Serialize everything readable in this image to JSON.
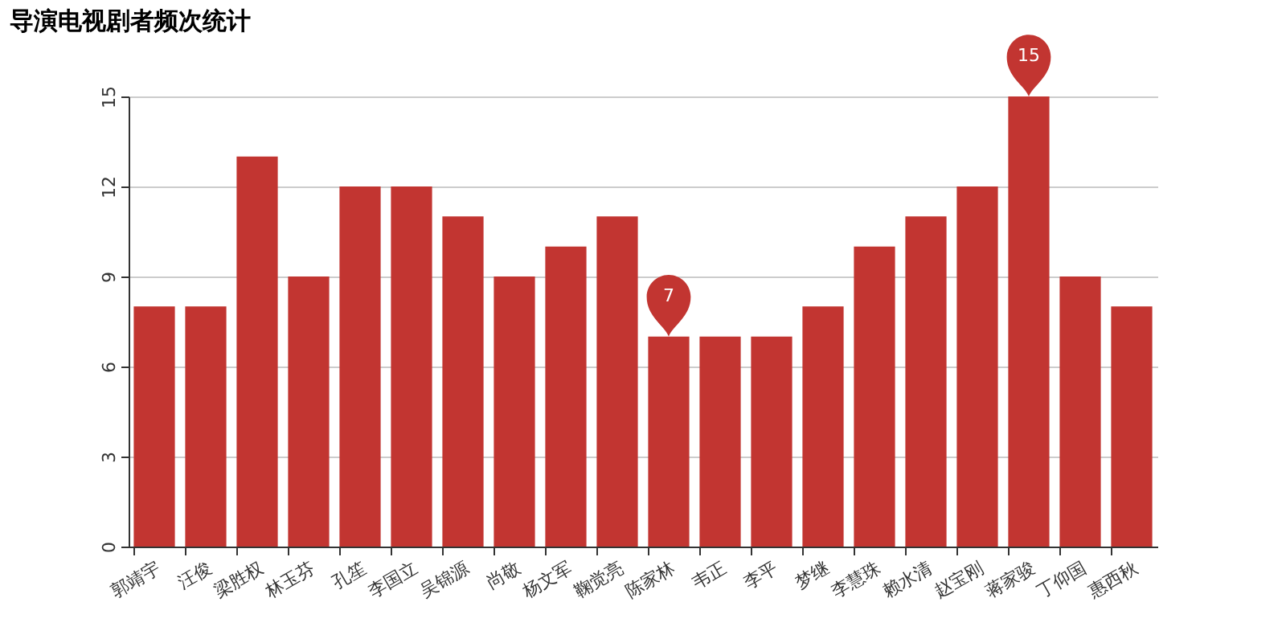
{
  "chart_data": {
    "type": "bar",
    "title": "导演电视剧者频次统计",
    "categories": [
      "郭靖宇",
      "汪俊",
      "梁胜权",
      "林玉芬",
      "孔笙",
      "李国立",
      "吴锦源",
      "尚敬",
      "杨文军",
      "鞠觉亮",
      "陈家林",
      "韦正",
      "李平",
      "梦继",
      "李慧珠",
      "赖水清",
      "赵宝刚",
      "蒋家骏",
      "丁仰国",
      "惠西秋"
    ],
    "values": [
      8,
      8,
      13,
      9,
      12,
      12,
      11,
      9,
      10,
      11,
      7,
      7,
      7,
      8,
      10,
      11,
      12,
      15,
      9,
      8
    ],
    "color": "#c23531",
    "ylim": [
      0,
      15
    ],
    "yticks": [
      0,
      3,
      6,
      9,
      12,
      15
    ],
    "grid": "y",
    "annotations": [
      {
        "text": "7",
        "x": "陈家林",
        "y": 7
      },
      {
        "text": "15",
        "x": "蒋家骏",
        "y": 15
      }
    ]
  }
}
